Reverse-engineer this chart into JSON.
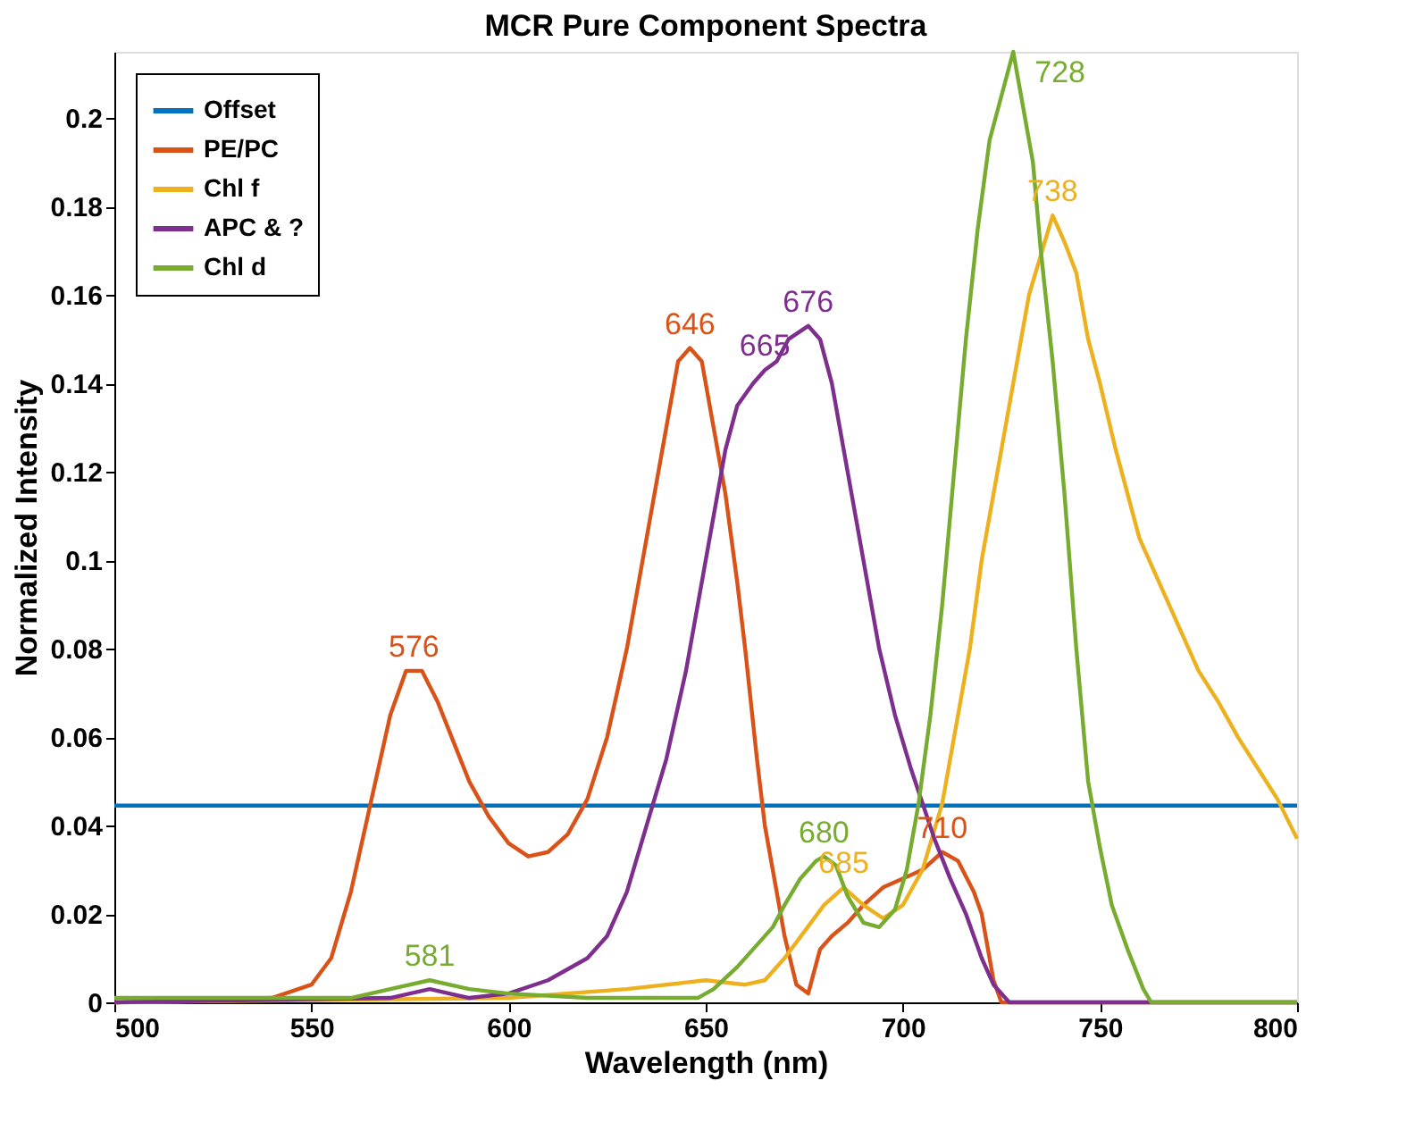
{
  "chart_data": {
    "type": "line",
    "title": "MCR Pure Component Spectra",
    "xlabel": "Wavelength (nm)",
    "ylabel": "Normalized Intensity",
    "xlim": [
      500,
      800
    ],
    "xticks": [
      500,
      550,
      600,
      650,
      700,
      750,
      800
    ],
    "ylim": [
      0,
      0.215
    ],
    "yticks": [
      0,
      0.02,
      0.04,
      0.06,
      0.08,
      0.1,
      0.12,
      0.14,
      0.16,
      0.18,
      0.2
    ],
    "grid": false,
    "legend": "top left",
    "marker": "none",
    "line_style": "solid",
    "series": [
      {
        "name": "Offset",
        "color": "#0072bd",
        "x": [
          500,
          800
        ],
        "values": [
          0.0445,
          0.0445
        ]
      },
      {
        "name": "PE/PC",
        "color": "#d95319",
        "x": [
          500,
          540,
          550,
          555,
          560,
          565,
          570,
          574,
          578,
          582,
          590,
          595,
          600,
          605,
          610,
          615,
          620,
          625,
          630,
          635,
          640,
          643,
          646,
          649,
          652,
          655,
          658,
          660,
          663,
          665,
          667,
          670,
          673,
          676,
          679,
          682,
          686,
          690,
          695,
          700,
          705,
          710,
          714,
          718,
          720,
          723,
          725,
          800
        ],
        "values": [
          0,
          0.001,
          0.004,
          0.01,
          0.025,
          0.045,
          0.065,
          0.075,
          0.075,
          0.068,
          0.05,
          0.042,
          0.036,
          0.033,
          0.034,
          0.038,
          0.046,
          0.06,
          0.08,
          0.105,
          0.13,
          0.145,
          0.148,
          0.145,
          0.13,
          0.115,
          0.095,
          0.08,
          0.055,
          0.04,
          0.03,
          0.015,
          0.004,
          0.002,
          0.012,
          0.015,
          0.018,
          0.022,
          0.026,
          0.028,
          0.03,
          0.034,
          0.032,
          0.025,
          0.02,
          0.005,
          0,
          0
        ]
      },
      {
        "name": "Chl f",
        "color": "#edb120",
        "x": [
          500,
          600,
          630,
          650,
          660,
          665,
          670,
          675,
          680,
          685,
          690,
          695,
          700,
          705,
          710,
          713,
          717,
          720,
          724,
          728,
          732,
          736,
          738,
          741,
          744,
          747,
          750,
          754,
          757,
          760,
          765,
          770,
          775,
          780,
          785,
          790,
          795,
          800
        ],
        "values": [
          0,
          0.001,
          0.003,
          0.005,
          0.004,
          0.005,
          0.01,
          0.016,
          0.022,
          0.026,
          0.022,
          0.019,
          0.022,
          0.03,
          0.045,
          0.06,
          0.08,
          0.1,
          0.12,
          0.14,
          0.16,
          0.172,
          0.178,
          0.172,
          0.165,
          0.15,
          0.14,
          0.125,
          0.115,
          0.105,
          0.095,
          0.085,
          0.075,
          0.068,
          0.06,
          0.053,
          0.046,
          0.037
        ]
      },
      {
        "name": "APC & ?",
        "color": "#7e2f8e",
        "x": [
          500,
          570,
          580,
          590,
          600,
          610,
          620,
          625,
          630,
          635,
          640,
          645,
          650,
          655,
          658,
          662,
          665,
          668,
          671,
          676,
          679,
          682,
          686,
          690,
          694,
          698,
          702,
          705,
          708,
          712,
          716,
          720,
          723,
          727,
          800
        ],
        "values": [
          0,
          0.001,
          0.003,
          0.001,
          0.002,
          0.005,
          0.01,
          0.015,
          0.025,
          0.04,
          0.055,
          0.075,
          0.1,
          0.125,
          0.135,
          0.14,
          0.143,
          0.145,
          0.15,
          0.153,
          0.15,
          0.14,
          0.12,
          0.1,
          0.08,
          0.065,
          0.053,
          0.045,
          0.037,
          0.028,
          0.02,
          0.01,
          0.004,
          0,
          0
        ]
      },
      {
        "name": "Chl d",
        "color": "#77ac30",
        "x": [
          500,
          560,
          570,
          580,
          590,
          600,
          620,
          640,
          648,
          652,
          658,
          662,
          667,
          670,
          674,
          678,
          680,
          683,
          686,
          690,
          694,
          698,
          701,
          704,
          707,
          710,
          713,
          716,
          719,
          722,
          725,
          728,
          731,
          733,
          735,
          738,
          741,
          744,
          747,
          750,
          753,
          757,
          761,
          763,
          800
        ],
        "values": [
          0.001,
          0.001,
          0.003,
          0.005,
          0.003,
          0.002,
          0.001,
          0.001,
          0.001,
          0.003,
          0.008,
          0.012,
          0.017,
          0.022,
          0.028,
          0.032,
          0.033,
          0.031,
          0.024,
          0.018,
          0.017,
          0.021,
          0.03,
          0.045,
          0.065,
          0.09,
          0.12,
          0.15,
          0.175,
          0.195,
          0.205,
          0.215,
          0.2,
          0.19,
          0.17,
          0.145,
          0.115,
          0.08,
          0.05,
          0.035,
          0.022,
          0.012,
          0.003,
          0,
          0
        ]
      }
    ],
    "annotations": [
      {
        "text": "576",
        "x": 576,
        "y": 0.075
      },
      {
        "text": "646",
        "x": 646,
        "y": 0.148
      },
      {
        "text": "665",
        "x": 665,
        "y": 0.143
      },
      {
        "text": "676",
        "x": 676,
        "y": 0.153
      },
      {
        "text": "728",
        "x": 728,
        "y": 0.215
      },
      {
        "text": "738",
        "x": 738,
        "y": 0.178
      },
      {
        "text": "680",
        "x": 680,
        "y": 0.033
      },
      {
        "text": "685",
        "x": 685,
        "y": 0.026
      },
      {
        "text": "710",
        "x": 710,
        "y": 0.034
      },
      {
        "text": "581",
        "x": 580,
        "y": 0.005
      }
    ]
  }
}
